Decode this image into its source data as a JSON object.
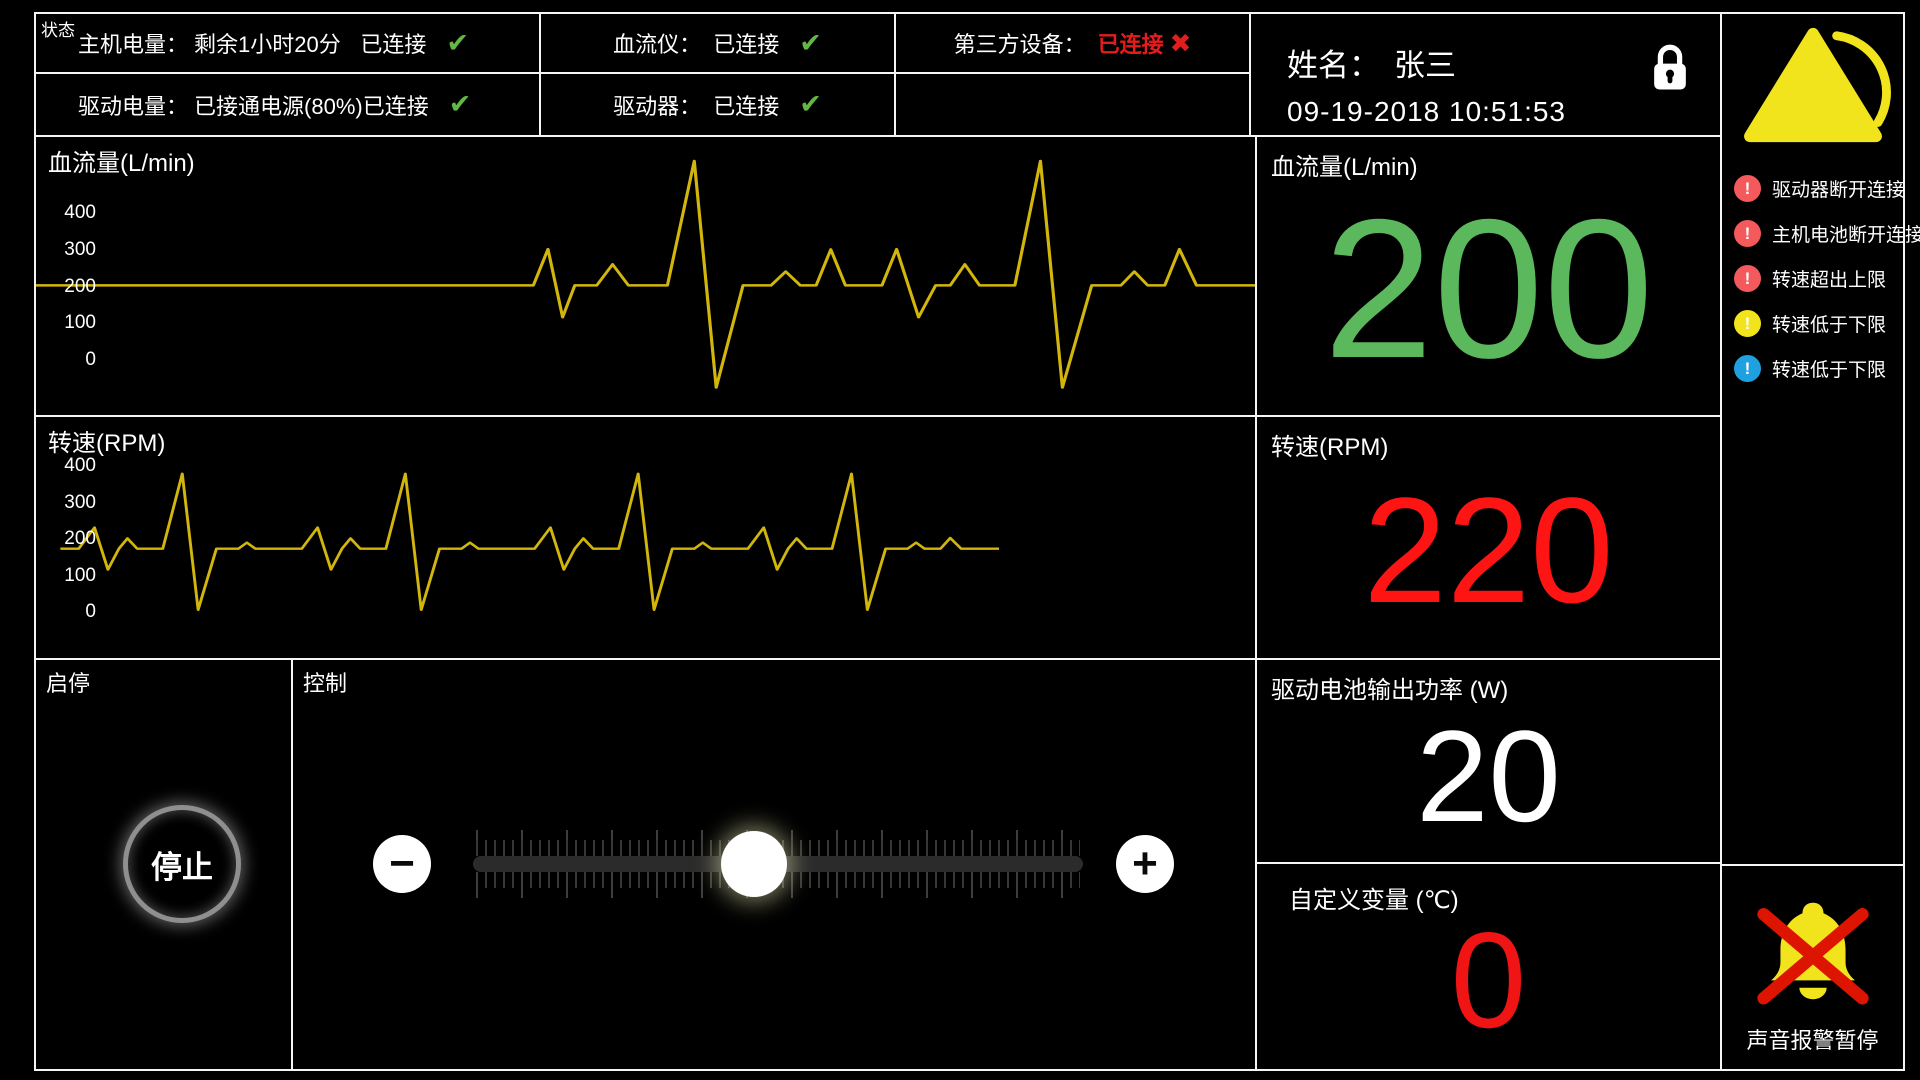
{
  "colors": {
    "ok_green": "#62b843",
    "error_red": "#e41c1c",
    "waveform": "#d2b60b",
    "alert_red": "#f4595c",
    "alert_yellow": "#f2e41c",
    "alert_blue": "#1fa0e0"
  },
  "status": {
    "corner_label": "状态",
    "host_battery": {
      "label": "主机电量：",
      "value": "剩余1小时20分",
      "conn": "已连接",
      "check": "✔"
    },
    "drive_battery": {
      "label": "驱动电量：",
      "value": "已接通电源(80%)",
      "conn": "已连接",
      "check": "✔"
    },
    "flow_meter": {
      "label": "血流仪：",
      "conn": "已连接",
      "check": "✔"
    },
    "driver": {
      "label": "驱动器：",
      "conn": "已连接",
      "check": "✔"
    },
    "third_party": {
      "label": "第三方设备：",
      "conn": "已连接",
      "cross": "✖",
      "conn_color": "#e41c1c"
    }
  },
  "patient": {
    "name_label": "姓名：",
    "name": "张三",
    "datetime": "09-19-2018 10:51:53",
    "lock_icon": "lock-icon"
  },
  "chart_data": [
    {
      "type": "line",
      "title": "血流量(L/min)",
      "xlabel": "",
      "ylabel": "L/min",
      "ticks": [
        400,
        300,
        200,
        100,
        0
      ],
      "ylim": [
        -100,
        560
      ],
      "baseline": 200,
      "color": "#d2b60b",
      "grid": false,
      "legend": "none",
      "points": [
        [
          0,
          200
        ],
        [
          40.8,
          200
        ],
        [
          42,
          300
        ],
        [
          43.2,
          112
        ],
        [
          44.2,
          200
        ],
        [
          46,
          200
        ],
        [
          47.3,
          258
        ],
        [
          48.6,
          200
        ],
        [
          51.8,
          200
        ],
        [
          54,
          543
        ],
        [
          55.8,
          -82
        ],
        [
          58,
          200
        ],
        [
          60.3,
          200
        ],
        [
          61.5,
          238
        ],
        [
          62.7,
          200
        ],
        [
          64,
          200
        ],
        [
          65.2,
          299
        ],
        [
          66.4,
          200
        ],
        [
          69.4,
          200
        ],
        [
          70.6,
          300
        ],
        [
          72.4,
          112
        ],
        [
          73.8,
          200
        ],
        [
          75,
          200
        ],
        [
          76.2,
          258
        ],
        [
          77.4,
          200
        ],
        [
          80.3,
          200
        ],
        [
          82.4,
          543
        ],
        [
          84.2,
          -82
        ],
        [
          86.6,
          200
        ],
        [
          89,
          200
        ],
        [
          90.1,
          238
        ],
        [
          91.2,
          200
        ],
        [
          92.6,
          200
        ],
        [
          93.8,
          300
        ],
        [
          95.2,
          200
        ],
        [
          100,
          200
        ]
      ]
    },
    {
      "type": "line",
      "title": "转速(RPM)",
      "xlabel": "",
      "ylabel": "RPM",
      "ticks": [
        400,
        300,
        200,
        100,
        0
      ],
      "ylim": [
        -20,
        420
      ],
      "baseline": 170,
      "color": "#d2b60b",
      "grid": false,
      "legend": "none",
      "points": [
        [
          2,
          170
        ],
        [
          3.5,
          170
        ],
        [
          4.8,
          229
        ],
        [
          5.9,
          112
        ],
        [
          6.8,
          170
        ],
        [
          7.5,
          199
        ],
        [
          8.3,
          170
        ],
        [
          10.4,
          170
        ],
        [
          12,
          379
        ],
        [
          13.3,
          0
        ],
        [
          14.8,
          170
        ],
        [
          16.6,
          170
        ],
        [
          17.3,
          187
        ],
        [
          18,
          170
        ],
        [
          21.8,
          170
        ],
        [
          23.1,
          229
        ],
        [
          24.2,
          112
        ],
        [
          25.1,
          170
        ],
        [
          25.8,
          199
        ],
        [
          26.6,
          170
        ],
        [
          28.7,
          170
        ],
        [
          30.3,
          379
        ],
        [
          31.6,
          0
        ],
        [
          33.1,
          170
        ],
        [
          34.9,
          170
        ],
        [
          35.6,
          187
        ],
        [
          36.3,
          170
        ],
        [
          40.9,
          170
        ],
        [
          42.2,
          229
        ],
        [
          43.3,
          112
        ],
        [
          44.2,
          170
        ],
        [
          44.9,
          199
        ],
        [
          45.7,
          170
        ],
        [
          47.8,
          170
        ],
        [
          49.4,
          379
        ],
        [
          50.7,
          0
        ],
        [
          52.2,
          170
        ],
        [
          54,
          170
        ],
        [
          54.7,
          187
        ],
        [
          55.4,
          170
        ],
        [
          58.4,
          170
        ],
        [
          59.7,
          229
        ],
        [
          60.8,
          112
        ],
        [
          61.7,
          170
        ],
        [
          62.4,
          199
        ],
        [
          63.2,
          170
        ],
        [
          65.3,
          170
        ],
        [
          66.9,
          379
        ],
        [
          68.2,
          0
        ],
        [
          69.7,
          170
        ],
        [
          71.5,
          170
        ],
        [
          72.2,
          187
        ],
        [
          72.9,
          170
        ],
        [
          74.2,
          170
        ],
        [
          75,
          200
        ],
        [
          75.9,
          170
        ],
        [
          79,
          170
        ]
      ]
    }
  ],
  "readouts": {
    "flow": {
      "label": "血流量(L/min)",
      "value": "200",
      "color": "#5cb85c"
    },
    "rpm": {
      "label": "转速(RPM)",
      "value": "220",
      "color": "#ff1414"
    },
    "power": {
      "label": "驱动电池输出功率 (W)",
      "value": "20",
      "color": "#ffffff"
    },
    "custom": {
      "label": "自定义变量 (℃)",
      "value": "0",
      "color": "#f01414"
    }
  },
  "controls": {
    "start_stop_title": "启停",
    "stop_label": "停止",
    "control_title": "控制",
    "minus_label": "−",
    "plus_label": "+",
    "slider_percent": 46
  },
  "sidebar": {
    "warning_icon": "warning-triangle-icon",
    "alert_glyph": "!",
    "alerts": [
      {
        "color": "#f4595c",
        "text": "驱动器断开连接"
      },
      {
        "color": "#f4595c",
        "text": "主机电池断开连接"
      },
      {
        "color": "#f4595c",
        "text": "转速超出上限"
      },
      {
        "color": "#f2e41c",
        "text": "转速低于下限"
      },
      {
        "color": "#1fa0e0",
        "text": "转速低于下限"
      }
    ],
    "mute_label": "声音报警暂停"
  }
}
